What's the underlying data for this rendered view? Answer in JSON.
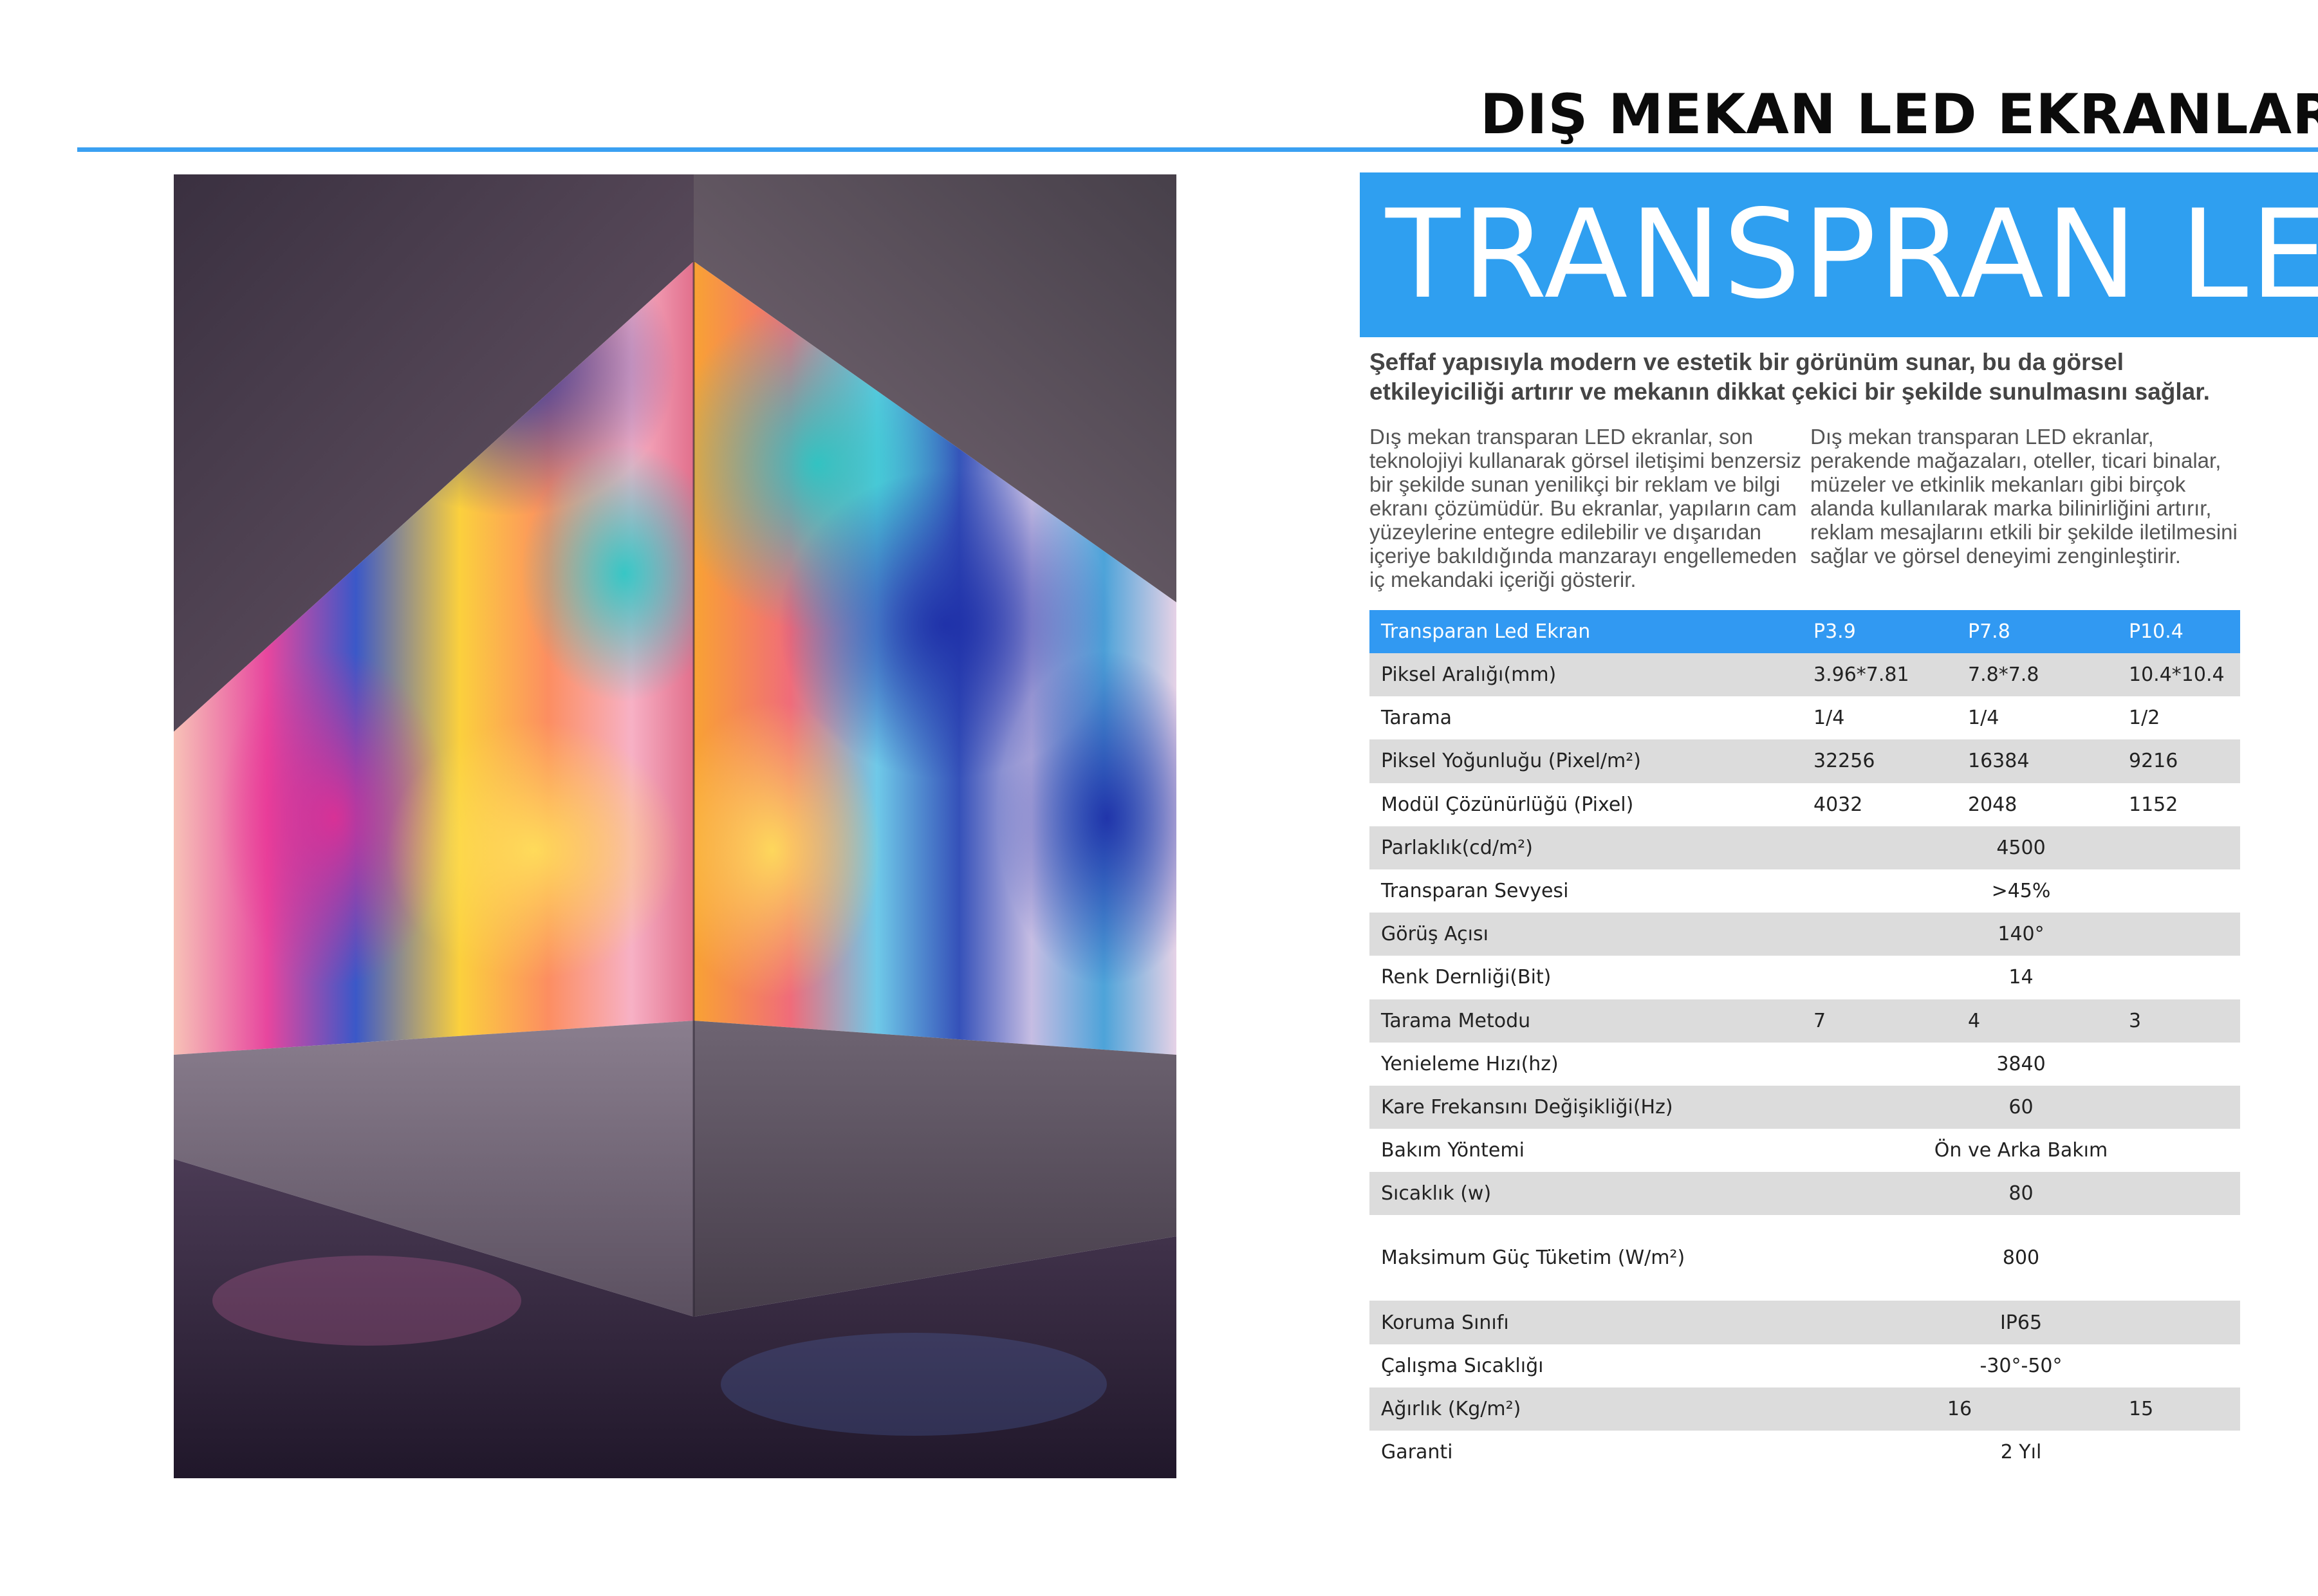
{
  "header": {
    "title": "DIŞ MEKAN LED EKRANLAR"
  },
  "product": {
    "title": "TRANSPRAN LED",
    "lead": "Şeffaf yapısıyla modern ve estetik bir görünüm sunar, bu da görsel etkileyiciliği artırır ve mekanın dikkat çekici bir şekilde sunulmasını sağlar.",
    "paragraph_left": "Dış mekan transparan LED ekranlar, son teknolojiyi kullanarak görsel iletişimi benzersiz bir şekilde sunan yenilikçi bir reklam ve bilgi ekranı çözümüdür. Bu ekranlar, yapıların cam yüzeylerine entegre edilebilir ve dışarıdan içeriye bakıldığında manzarayı engellemeden iç mekandaki içeriği gösterir.",
    "paragraph_right": "Dış mekan transparan LED ekranlar, perakende mağazaları, oteller, ticari binalar, müzeler ve etkinlik mekanları gibi birçok alanda kullanılarak marka bilinirliğini artırır, reklam mesajlarını etkili bir şekilde iletilmesini sağlar ve görsel deneyimi zenginleştirir."
  },
  "specs": {
    "header": [
      "Transparan Led Ekran",
      "P3.9",
      "P7.8",
      "P10.4"
    ],
    "rows": [
      {
        "name": "Piksel Aralığı(mm)",
        "v1": "3.96*7.81",
        "v2": "7.8*7.8",
        "v3": "10.4*10.4"
      },
      {
        "name": "Tarama",
        "v1": "1/4",
        "v2": "1/4",
        "v3": "1/2"
      },
      {
        "name": "Piksel Yoğunluğu (Pixel/m²)",
        "v1": "32256",
        "v2": "16384",
        "v3": "9216"
      },
      {
        "name": "Modül Çözünürlüğü (Pixel)",
        "v1": "4032",
        "v2": "2048",
        "v3": "1152"
      },
      {
        "name": "Parlaklık(cd/m²)",
        "all": "4500"
      },
      {
        "name": "Transparan Sevyesi",
        "all": ">45%"
      },
      {
        "name": "Görüş Açısı",
        "all": "140°"
      },
      {
        "name": "Renk Dernliği(Bit)",
        "all": "14"
      },
      {
        "name": "Tarama Metodu",
        "v1": "7",
        "v2": "4",
        "v3": "3"
      },
      {
        "name": "Yenieleme Hızı(hz)",
        "all": "3840"
      },
      {
        "name": "Kare Frekansını Değişikliği(Hz)",
        "all": "60"
      },
      {
        "name": "Bakım Yöntemi",
        "all": "Ön ve Arka Bakım"
      },
      {
        "name": "Sıcaklık (w)",
        "all": "80"
      },
      {
        "name": "Maksimum Güç Tüketim (W/m²)",
        "all": "800"
      },
      {
        "name": "Koruma Sınıfı",
        "all": "IP65"
      },
      {
        "name": "Çalışma Sıcaklığı",
        "all": "-30°-50°"
      },
      {
        "name": "Ağırlık (Kg/m²)",
        "v12": "16",
        "v3": "15"
      },
      {
        "name": "Garanti",
        "all": "2 Yıl"
      }
    ]
  }
}
